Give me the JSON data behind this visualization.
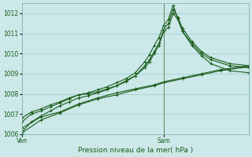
{
  "background_color": "#cce8e8",
  "grid_color": "#99cccc",
  "line_color": "#1a5c1a",
  "xlabel": "Pression niveau de la mer( hPa )",
  "ylim": [
    1006.0,
    1012.5
  ],
  "yticks": [
    1006,
    1007,
    1008,
    1009,
    1010,
    1011,
    1012
  ],
  "xlim": [
    0,
    48
  ],
  "ven_x": 0,
  "sam_x": 30,
  "x_end": 48,
  "peaked_lines": [
    [
      [
        0,
        1006.1
      ],
      [
        2,
        1006.6
      ],
      [
        4,
        1006.9
      ],
      [
        6,
        1007.15
      ],
      [
        8,
        1007.4
      ],
      [
        10,
        1007.6
      ],
      [
        12,
        1007.8
      ],
      [
        14,
        1007.9
      ],
      [
        16,
        1008.05
      ],
      [
        18,
        1008.2
      ],
      [
        20,
        1008.4
      ],
      [
        22,
        1008.6
      ],
      [
        24,
        1008.9
      ],
      [
        26,
        1009.3
      ],
      [
        27,
        1009.6
      ],
      [
        28,
        1010.0
      ],
      [
        29,
        1010.4
      ],
      [
        30,
        1011.1
      ],
      [
        31,
        1011.3
      ],
      [
        32,
        1012.0
      ],
      [
        33,
        1011.7
      ],
      [
        34,
        1011.1
      ],
      [
        36,
        1010.5
      ],
      [
        38,
        1010.0
      ],
      [
        40,
        1009.7
      ],
      [
        44,
        1009.4
      ],
      [
        48,
        1009.3
      ]
    ],
    [
      [
        0,
        1006.6
      ],
      [
        2,
        1007.0
      ],
      [
        4,
        1007.15
      ],
      [
        6,
        1007.35
      ],
      [
        8,
        1007.55
      ],
      [
        10,
        1007.75
      ],
      [
        12,
        1007.95
      ],
      [
        14,
        1008.0
      ],
      [
        16,
        1008.1
      ],
      [
        18,
        1008.25
      ],
      [
        20,
        1008.4
      ],
      [
        22,
        1008.65
      ],
      [
        24,
        1008.9
      ],
      [
        26,
        1009.4
      ],
      [
        27,
        1009.7
      ],
      [
        28,
        1010.1
      ],
      [
        29,
        1010.5
      ],
      [
        30,
        1011.2
      ],
      [
        31,
        1011.5
      ],
      [
        32,
        1012.2
      ],
      [
        33,
        1011.8
      ],
      [
        34,
        1011.25
      ],
      [
        36,
        1010.6
      ],
      [
        38,
        1010.1
      ],
      [
        40,
        1009.8
      ],
      [
        44,
        1009.5
      ],
      [
        48,
        1009.4
      ]
    ],
    [
      [
        0,
        1006.8
      ],
      [
        2,
        1007.1
      ],
      [
        4,
        1007.25
      ],
      [
        6,
        1007.45
      ],
      [
        8,
        1007.6
      ],
      [
        10,
        1007.8
      ],
      [
        12,
        1007.95
      ],
      [
        14,
        1008.05
      ],
      [
        16,
        1008.2
      ],
      [
        18,
        1008.35
      ],
      [
        20,
        1008.55
      ],
      [
        22,
        1008.75
      ],
      [
        24,
        1009.05
      ],
      [
        26,
        1009.6
      ],
      [
        27,
        1009.95
      ],
      [
        28,
        1010.4
      ],
      [
        29,
        1010.8
      ],
      [
        30,
        1011.4
      ],
      [
        31,
        1011.7
      ],
      [
        32,
        1012.4
      ],
      [
        33,
        1011.75
      ],
      [
        34,
        1011.1
      ],
      [
        36,
        1010.4
      ],
      [
        38,
        1009.9
      ],
      [
        40,
        1009.5
      ],
      [
        44,
        1009.15
      ],
      [
        48,
        1009.05
      ]
    ]
  ],
  "flat_lines": [
    [
      [
        0,
        1006.05
      ],
      [
        4,
        1006.7
      ],
      [
        8,
        1007.05
      ],
      [
        12,
        1007.45
      ],
      [
        16,
        1007.75
      ],
      [
        20,
        1007.95
      ],
      [
        24,
        1008.2
      ],
      [
        28,
        1008.4
      ],
      [
        30,
        1008.55
      ],
      [
        34,
        1008.75
      ],
      [
        38,
        1008.95
      ],
      [
        42,
        1009.15
      ],
      [
        48,
        1009.35
      ]
    ],
    [
      [
        0,
        1006.3
      ],
      [
        4,
        1006.85
      ],
      [
        8,
        1007.1
      ],
      [
        12,
        1007.5
      ],
      [
        16,
        1007.8
      ],
      [
        20,
        1008.05
      ],
      [
        24,
        1008.25
      ],
      [
        28,
        1008.45
      ],
      [
        30,
        1008.6
      ],
      [
        34,
        1008.8
      ],
      [
        38,
        1009.0
      ],
      [
        42,
        1009.2
      ],
      [
        48,
        1009.4
      ]
    ]
  ],
  "vline_x": 30,
  "tick_label_color": "#1a5c1a",
  "tick_fontsize": 5.5,
  "xlabel_fontsize": 6.5
}
